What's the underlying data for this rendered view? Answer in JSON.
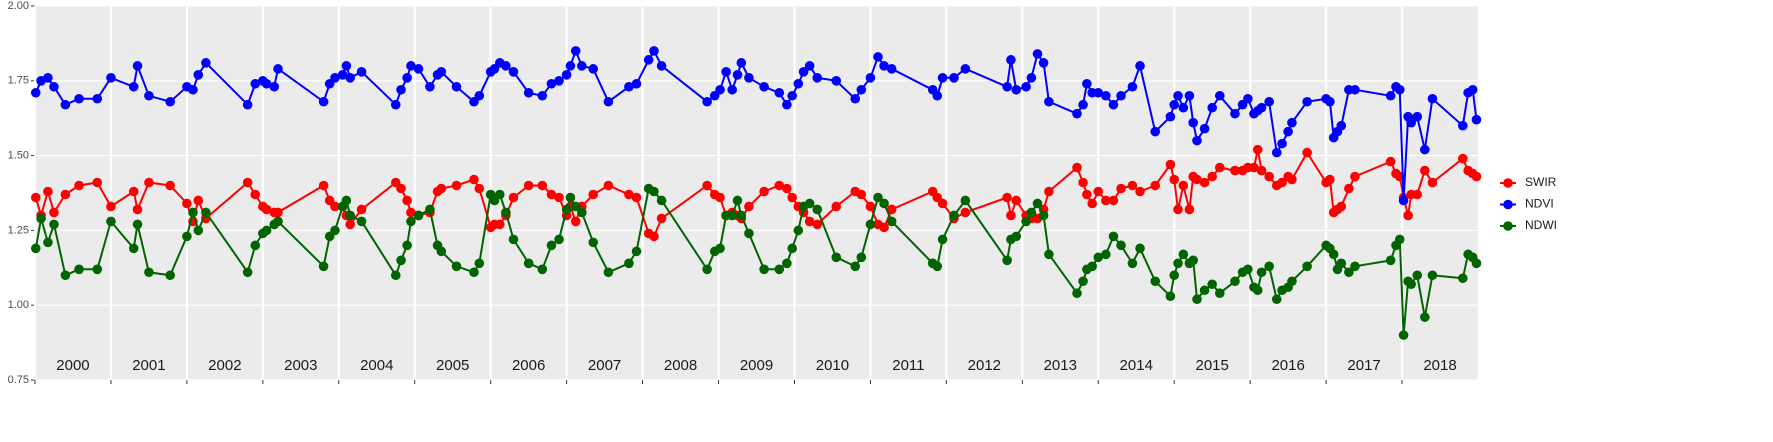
{
  "chart_data": {
    "type": "line",
    "x": [
      2000.01,
      2000.08,
      2000.17,
      2000.25,
      2000.4,
      2000.58,
      2000.82,
      2001.0,
      2001.3,
      2001.35,
      2001.5,
      2001.78,
      2002.0,
      2002.08,
      2002.15,
      2002.25,
      2002.8,
      2002.9,
      2003.0,
      2003.05,
      2003.15,
      2003.2,
      2003.8,
      2003.88,
      2003.95,
      2004.05,
      2004.1,
      2004.15,
      2004.3,
      2004.75,
      2004.82,
      2004.9,
      2004.95,
      2005.05,
      2005.2,
      2005.3,
      2005.35,
      2005.55,
      2005.78,
      2005.85,
      2006.0,
      2006.05,
      2006.12,
      2006.2,
      2006.3,
      2006.5,
      2006.68,
      2006.8,
      2006.9,
      2007.0,
      2007.05,
      2007.12,
      2007.2,
      2007.35,
      2007.55,
      2007.82,
      2007.92,
      2008.08,
      2008.15,
      2008.25,
      2008.85,
      2008.95,
      2009.02,
      2009.1,
      2009.18,
      2009.25,
      2009.3,
      2009.4,
      2009.6,
      2009.8,
      2009.9,
      2009.97,
      2010.05,
      2010.12,
      2010.2,
      2010.3,
      2010.55,
      2010.8,
      2010.88,
      2011.0,
      2011.1,
      2011.18,
      2011.28,
      2011.82,
      2011.88,
      2011.95,
      2012.1,
      2012.25,
      2012.8,
      2012.85,
      2012.92,
      2013.05,
      2013.12,
      2013.2,
      2013.28,
      2013.35,
      2013.72,
      2013.8,
      2013.85,
      2013.92,
      2014.0,
      2014.1,
      2014.2,
      2014.3,
      2014.45,
      2014.55,
      2014.75,
      2014.95,
      2015.0,
      2015.05,
      2015.12,
      2015.2,
      2015.25,
      2015.3,
      2015.4,
      2015.5,
      2015.6,
      2015.8,
      2015.9,
      2015.97,
      2016.05,
      2016.1,
      2016.15,
      2016.25,
      2016.35,
      2016.42,
      2016.5,
      2016.55,
      2016.75,
      2017.0,
      2017.05,
      2017.1,
      2017.15,
      2017.2,
      2017.3,
      2017.38,
      2017.85,
      2017.92,
      2017.97,
      2018.02,
      2018.08,
      2018.12,
      2018.2,
      2018.3,
      2018.4,
      2018.8,
      2018.87,
      2018.93,
      2018.98
    ],
    "series": [
      {
        "name": "SWIR",
        "color": "#ff0000",
        "values": [
          1.36,
          1.3,
          1.38,
          1.31,
          1.37,
          1.4,
          1.41,
          1.33,
          1.38,
          1.32,
          1.41,
          1.4,
          1.34,
          1.28,
          1.35,
          1.29,
          1.41,
          1.37,
          1.33,
          1.32,
          1.31,
          1.31,
          1.4,
          1.35,
          1.33,
          1.33,
          1.3,
          1.27,
          1.32,
          1.41,
          1.39,
          1.35,
          1.31,
          1.3,
          1.31,
          1.38,
          1.39,
          1.4,
          1.42,
          1.39,
          1.26,
          1.27,
          1.27,
          1.3,
          1.36,
          1.4,
          1.4,
          1.37,
          1.36,
          1.3,
          1.33,
          1.28,
          1.33,
          1.37,
          1.4,
          1.37,
          1.36,
          1.24,
          1.23,
          1.29,
          1.4,
          1.37,
          1.36,
          1.3,
          1.31,
          1.3,
          1.29,
          1.33,
          1.38,
          1.4,
          1.39,
          1.36,
          1.33,
          1.31,
          1.28,
          1.27,
          1.33,
          1.38,
          1.37,
          1.33,
          1.27,
          1.26,
          1.32,
          1.38,
          1.36,
          1.34,
          1.29,
          1.31,
          1.36,
          1.3,
          1.35,
          1.3,
          1.29,
          1.29,
          1.32,
          1.38,
          1.46,
          1.41,
          1.37,
          1.34,
          1.38,
          1.35,
          1.35,
          1.39,
          1.4,
          1.38,
          1.4,
          1.47,
          1.42,
          1.32,
          1.4,
          1.32,
          1.43,
          1.42,
          1.41,
          1.43,
          1.46,
          1.45,
          1.45,
          1.46,
          1.46,
          1.52,
          1.45,
          1.43,
          1.4,
          1.41,
          1.43,
          1.42,
          1.51,
          1.41,
          1.42,
          1.31,
          1.32,
          1.33,
          1.39,
          1.43,
          1.48,
          1.44,
          1.43,
          1.36,
          1.3,
          1.37,
          1.37,
          1.45,
          1.41,
          1.49,
          1.45,
          1.44,
          1.43
        ]
      },
      {
        "name": "NDVI",
        "color": "#0000ff",
        "values": [
          1.71,
          1.75,
          1.76,
          1.73,
          1.67,
          1.69,
          1.69,
          1.76,
          1.73,
          1.8,
          1.7,
          1.68,
          1.73,
          1.72,
          1.77,
          1.81,
          1.67,
          1.74,
          1.75,
          1.74,
          1.73,
          1.79,
          1.68,
          1.74,
          1.76,
          1.77,
          1.8,
          1.76,
          1.78,
          1.67,
          1.72,
          1.76,
          1.8,
          1.79,
          1.73,
          1.77,
          1.78,
          1.73,
          1.68,
          1.7,
          1.78,
          1.79,
          1.81,
          1.8,
          1.78,
          1.71,
          1.7,
          1.74,
          1.75,
          1.77,
          1.8,
          1.85,
          1.8,
          1.79,
          1.68,
          1.73,
          1.74,
          1.82,
          1.85,
          1.8,
          1.68,
          1.7,
          1.72,
          1.78,
          1.72,
          1.77,
          1.81,
          1.76,
          1.73,
          1.71,
          1.67,
          1.7,
          1.74,
          1.78,
          1.8,
          1.76,
          1.75,
          1.69,
          1.72,
          1.76,
          1.83,
          1.8,
          1.79,
          1.72,
          1.7,
          1.76,
          1.76,
          1.79,
          1.73,
          1.82,
          1.72,
          1.73,
          1.76,
          1.84,
          1.81,
          1.68,
          1.64,
          1.67,
          1.74,
          1.71,
          1.71,
          1.7,
          1.67,
          1.7,
          1.73,
          1.8,
          1.58,
          1.63,
          1.67,
          1.7,
          1.66,
          1.7,
          1.61,
          1.55,
          1.59,
          1.66,
          1.7,
          1.64,
          1.67,
          1.69,
          1.64,
          1.65,
          1.66,
          1.68,
          1.51,
          1.54,
          1.58,
          1.61,
          1.68,
          1.69,
          1.68,
          1.56,
          1.58,
          1.6,
          1.72,
          1.72,
          1.7,
          1.73,
          1.72,
          1.35,
          1.63,
          1.61,
          1.63,
          1.52,
          1.69,
          1.6,
          1.71,
          1.72,
          1.62
        ]
      },
      {
        "name": "NDWI",
        "color": "#006400",
        "values": [
          1.19,
          1.29,
          1.21,
          1.27,
          1.1,
          1.12,
          1.12,
          1.28,
          1.19,
          1.27,
          1.11,
          1.1,
          1.23,
          1.31,
          1.25,
          1.31,
          1.11,
          1.2,
          1.24,
          1.25,
          1.27,
          1.28,
          1.13,
          1.23,
          1.25,
          1.33,
          1.35,
          1.3,
          1.28,
          1.1,
          1.15,
          1.2,
          1.28,
          1.3,
          1.32,
          1.2,
          1.18,
          1.13,
          1.11,
          1.14,
          1.37,
          1.35,
          1.37,
          1.31,
          1.22,
          1.14,
          1.12,
          1.2,
          1.22,
          1.32,
          1.36,
          1.33,
          1.31,
          1.21,
          1.11,
          1.14,
          1.18,
          1.39,
          1.38,
          1.35,
          1.12,
          1.18,
          1.19,
          1.3,
          1.3,
          1.35,
          1.3,
          1.24,
          1.12,
          1.12,
          1.14,
          1.19,
          1.25,
          1.33,
          1.34,
          1.32,
          1.16,
          1.13,
          1.16,
          1.27,
          1.36,
          1.34,
          1.28,
          1.14,
          1.13,
          1.22,
          1.3,
          1.35,
          1.15,
          1.22,
          1.23,
          1.28,
          1.31,
          1.34,
          1.3,
          1.17,
          1.04,
          1.08,
          1.12,
          1.13,
          1.16,
          1.17,
          1.23,
          1.2,
          1.14,
          1.19,
          1.08,
          1.03,
          1.1,
          1.14,
          1.17,
          1.14,
          1.15,
          1.02,
          1.05,
          1.07,
          1.04,
          1.08,
          1.11,
          1.12,
          1.06,
          1.05,
          1.11,
          1.13,
          1.02,
          1.05,
          1.06,
          1.08,
          1.13,
          1.2,
          1.19,
          1.17,
          1.12,
          1.14,
          1.11,
          1.13,
          1.15,
          1.2,
          1.22,
          0.9,
          1.08,
          1.07,
          1.1,
          0.96,
          1.1,
          1.09,
          1.17,
          1.16,
          1.14
        ]
      }
    ],
    "xlim": [
      2000,
      2019
    ],
    "year_bands": [
      2000,
      2001,
      2002,
      2003,
      2004,
      2005,
      2006,
      2007,
      2008,
      2009,
      2010,
      2011,
      2012,
      2013,
      2014,
      2015,
      2016,
      2017,
      2018
    ],
    "ylim": [
      0.75,
      2.0
    ],
    "yticks": [
      0.75,
      {
        "value": 1.0,
        "label": "1.00"
      },
      1.25,
      {
        "value": 1.5,
        "label": "1.50"
      },
      1.75,
      {
        "value": 2.0,
        "label": "2.00"
      }
    ],
    "grid": true,
    "legend": "right"
  }
}
